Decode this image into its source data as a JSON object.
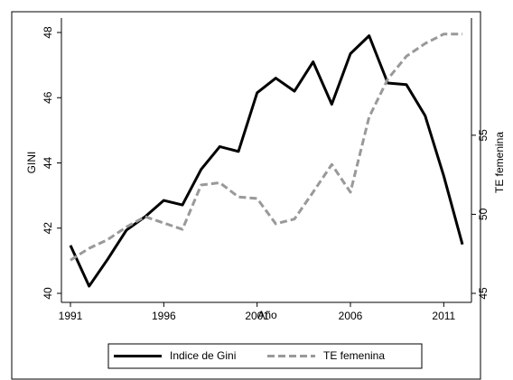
{
  "chart_data": {
    "type": "line",
    "x_label": "Año",
    "y_label": "GINI",
    "y2_label": "TE femenina",
    "x": [
      1991,
      1992,
      1993,
      1994,
      1995,
      1996,
      1997,
      1998,
      1999,
      2000,
      2001,
      2002,
      2003,
      2004,
      2005,
      2006,
      2007,
      2008,
      2009,
      2010,
      2011,
      2012
    ],
    "xlim": [
      1991,
      2012
    ],
    "xticks": [
      1991,
      1996,
      2001,
      2006,
      2011
    ],
    "ylim": [
      40,
      48
    ],
    "yticks": [
      40,
      42,
      44,
      46,
      48
    ],
    "y2lim": [
      45,
      61.5
    ],
    "y2ticks": [
      45,
      50,
      55
    ],
    "legend": "bottom",
    "series": [
      {
        "name": "Indice de Gini",
        "color": "#000000",
        "dash": "solid",
        "values": [
          41.47,
          40.22,
          41.05,
          41.94,
          42.35,
          42.85,
          42.71,
          43.8,
          44.5,
          44.35,
          46.15,
          46.6,
          46.2,
          47.1,
          45.8,
          47.35,
          47.9,
          46.45,
          46.4,
          45.45,
          43.6,
          41.5
        ]
      },
      {
        "name": "TE femenina",
        "color": "#999999",
        "dash": "dashed",
        "axis": "y2",
        "values": [
          47.1,
          47.85,
          48.4,
          49.2,
          49.85,
          49.45,
          49.05,
          51.85,
          52.0,
          51.1,
          51.0,
          49.4,
          49.7,
          51.4,
          53.15,
          51.4,
          56.15,
          58.55,
          60.0,
          60.8,
          61.4,
          61.4
        ]
      }
    ]
  }
}
